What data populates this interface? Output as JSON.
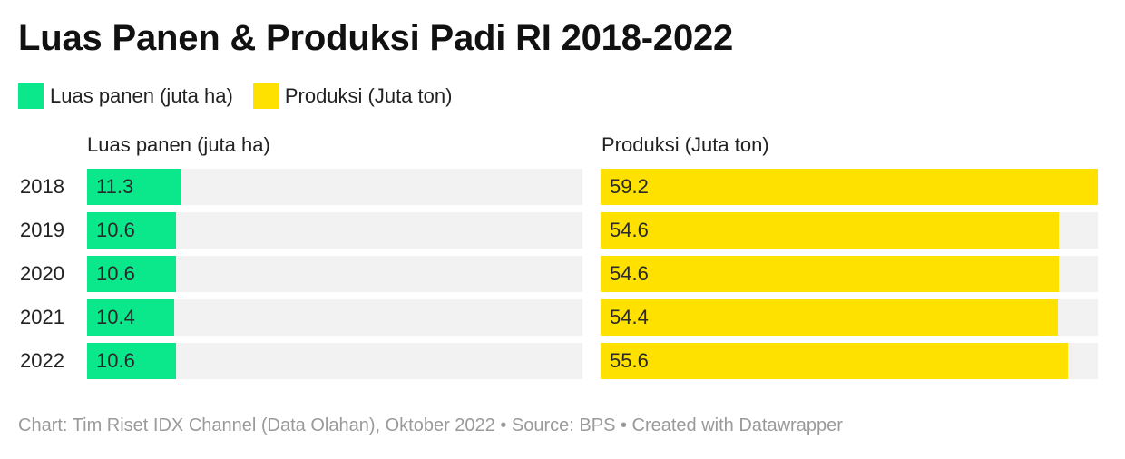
{
  "title": "Luas Panen & Produksi Padi RI 2018-2022",
  "legend": [
    {
      "label": "Luas panen (juta ha)",
      "color": "#0be88b"
    },
    {
      "label": "Produksi (Juta ton)",
      "color": "#ffe100"
    }
  ],
  "footer": {
    "text": "Chart: Tim Riset IDX Channel (Data Olahan), Oktober 2022 • Source: BPS • Created with Datawrapper"
  },
  "chart_data": {
    "type": "bar",
    "orientation": "horizontal",
    "categories": [
      "2018",
      "2019",
      "2020",
      "2021",
      "2022"
    ],
    "series": [
      {
        "name": "Luas panen (juta ha)",
        "values": [
          11.3,
          10.6,
          10.6,
          10.4,
          10.6
        ],
        "color": "#0be88b",
        "max": 59.2
      },
      {
        "name": "Produksi (Juta ton)",
        "values": [
          59.2,
          54.6,
          54.6,
          54.4,
          55.6
        ],
        "color": "#ffe100",
        "max": 59.2
      }
    ],
    "track_color": "#f2f2f2",
    "grid": false,
    "legend_position": "top-left",
    "title": "Luas Panen & Produksi Padi RI 2018-2022"
  }
}
